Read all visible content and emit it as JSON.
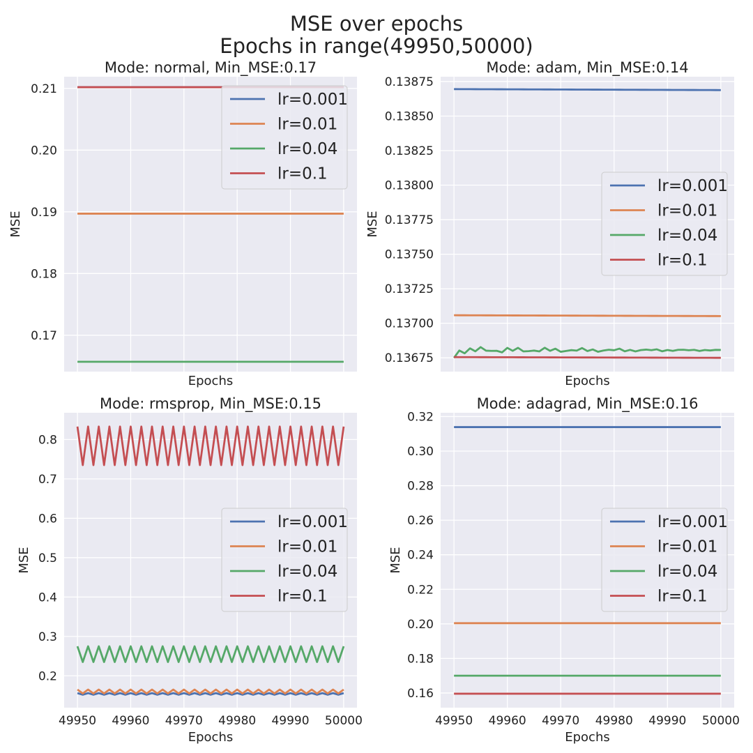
{
  "figure": {
    "title_line1": "MSE over epochs",
    "title_line2": "Epochs in range(49950,50000)"
  },
  "colors": {
    "background": "#eaeaf2",
    "grid": "#ffffff",
    "lr_0.001": "#4c72b0",
    "lr_0.01": "#dd8452",
    "lr_0.04": "#55a868",
    "lr_0.1": "#c44e52"
  },
  "chart_data": [
    {
      "type": "line",
      "title": "Mode: normal, Min_MSE:0.17",
      "xlabel": "Epochs",
      "ylabel": "MSE",
      "xlim": [
        49947.5,
        50002.5
      ],
      "ylim": [
        0.1641,
        0.2119
      ],
      "xticks": [
        49950,
        49960,
        49970,
        49980,
        49990,
        50000
      ],
      "show_xtick_labels": false,
      "yticks": [
        0.17,
        0.18,
        0.19,
        0.2,
        0.21
      ],
      "ytick_labels": [
        "0.17",
        "0.18",
        "0.19",
        "0.20",
        "0.21"
      ],
      "grid": true,
      "legend_position": "upper-right",
      "series": [
        {
          "name": "lr=0.001",
          "pattern": "flat",
          "start": 0.2102,
          "end": 0.2102
        },
        {
          "name": "lr=0.01",
          "pattern": "flat",
          "start": 0.1897,
          "end": 0.1897
        },
        {
          "name": "lr=0.04",
          "pattern": "flat",
          "start": 0.1657,
          "end": 0.1657
        },
        {
          "name": "lr=0.1",
          "pattern": "flat",
          "start": 0.2102,
          "end": 0.2102
        }
      ]
    },
    {
      "type": "line",
      "title": "Mode: adam, Min_MSE:0.14",
      "xlabel": "Epochs",
      "ylabel": "MSE",
      "xlim": [
        49947.5,
        50002.5
      ],
      "ylim": [
        0.13665,
        0.138785
      ],
      "xticks": [
        49950,
        49960,
        49970,
        49980,
        49990,
        50000
      ],
      "show_xtick_labels": false,
      "yticks": [
        0.13675,
        0.137,
        0.13725,
        0.1375,
        0.13775,
        0.138,
        0.13825,
        0.1385,
        0.13875
      ],
      "ytick_labels": [
        "0.13675",
        "0.13700",
        "0.13725",
        "0.13750",
        "0.13775",
        "0.13800",
        "0.13825",
        "0.13850",
        "0.13875"
      ],
      "grid": true,
      "legend_position": "center-right",
      "series": [
        {
          "name": "lr=0.001",
          "pattern": "flat",
          "start": 0.138695,
          "end": 0.138688
        },
        {
          "name": "lr=0.01",
          "pattern": "flat",
          "start": 0.137058,
          "end": 0.137052
        },
        {
          "name": "lr=0.04",
          "pattern": "noisy",
          "start": 0.13675,
          "base": 0.136805,
          "amp_start": 2.8e-05,
          "amp_end": 4e-06,
          "end": 0.136803
        },
        {
          "name": "lr=0.1",
          "pattern": "flat",
          "start": 0.136755,
          "end": 0.13675
        }
      ]
    },
    {
      "type": "line",
      "title": "Mode: rmsprop, Min_MSE:0.15",
      "xlabel": "Epochs",
      "ylabel": "MSE",
      "xlim": [
        49947.5,
        50002.5
      ],
      "ylim": [
        0.119,
        0.868
      ],
      "xticks": [
        49950,
        49960,
        49970,
        49980,
        49990,
        50000
      ],
      "xtick_labels": [
        "49950",
        "49960",
        "49970",
        "49980",
        "49990",
        "50000"
      ],
      "show_xtick_labels": true,
      "yticks": [
        0.2,
        0.3,
        0.4,
        0.5,
        0.6,
        0.7,
        0.8
      ],
      "ytick_labels": [
        "0.2",
        "0.3",
        "0.4",
        "0.5",
        "0.6",
        "0.7",
        "0.8"
      ],
      "grid": true,
      "legend_position": "center-right",
      "series": [
        {
          "name": "lr=0.001",
          "pattern": "zigzag",
          "high": 0.156,
          "low": 0.152
        },
        {
          "name": "lr=0.01",
          "pattern": "zigzag",
          "high": 0.165,
          "low": 0.155
        },
        {
          "name": "lr=0.04",
          "pattern": "zigzag",
          "high": 0.275,
          "low": 0.235
        },
        {
          "name": "lr=0.1",
          "pattern": "zigzag",
          "high": 0.833,
          "low": 0.735
        }
      ]
    },
    {
      "type": "line",
      "title": "Mode: adagrad, Min_MSE:0.16",
      "xlabel": "Epochs",
      "ylabel": "MSE",
      "xlim": [
        49947.5,
        50002.5
      ],
      "ylim": [
        0.1515,
        0.3222
      ],
      "xticks": [
        49950,
        49960,
        49970,
        49980,
        49990,
        50000
      ],
      "xtick_labels": [
        "49950",
        "49960",
        "49970",
        "49980",
        "49990",
        "50000"
      ],
      "show_xtick_labels": true,
      "yticks": [
        0.16,
        0.18,
        0.2,
        0.22,
        0.24,
        0.26,
        0.28,
        0.3,
        0.32
      ],
      "ytick_labels": [
        "0.16",
        "0.18",
        "0.20",
        "0.22",
        "0.24",
        "0.26",
        "0.28",
        "0.30",
        "0.32"
      ],
      "grid": true,
      "legend_position": "center-right",
      "series": [
        {
          "name": "lr=0.001",
          "pattern": "flat",
          "start": 0.3139,
          "end": 0.3139
        },
        {
          "name": "lr=0.01",
          "pattern": "flat",
          "start": 0.2004,
          "end": 0.2004
        },
        {
          "name": "lr=0.04",
          "pattern": "flat",
          "start": 0.17,
          "end": 0.17
        },
        {
          "name": "lr=0.1",
          "pattern": "flat",
          "start": 0.1596,
          "end": 0.1596
        }
      ]
    }
  ]
}
